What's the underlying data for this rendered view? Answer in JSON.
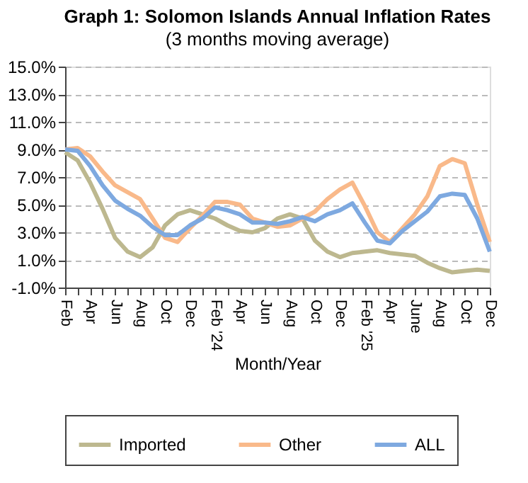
{
  "chart_data": {
    "type": "line",
    "title": "Graph 1:  Solomon Islands Annual Inflation Rates",
    "subtitle": "(3 months moving average)",
    "xlabel": "Month/Year",
    "categories": [
      "Feb",
      null,
      "Apr",
      null,
      "Jun",
      null,
      "Aug",
      null,
      "Oct",
      null,
      "Dec",
      null,
      "Feb '24",
      null,
      "Apr",
      null,
      "Jun",
      null,
      "Aug",
      null,
      "Oct",
      null,
      "Dec",
      null,
      "Feb '25",
      null,
      "Apr",
      null,
      "June",
      null,
      "Aug",
      null,
      "Oct",
      null,
      "Dec"
    ],
    "series": [
      {
        "name": "Imported",
        "color": "#bdb88f",
        "values": [
          8.8,
          8.2,
          6.6,
          4.7,
          2.6,
          1.6,
          1.2,
          1.9,
          3.5,
          4.3,
          4.6,
          4.3,
          4.0,
          3.5,
          3.1,
          3.0,
          3.3,
          4.0,
          4.3,
          4.0,
          2.4,
          1.6,
          1.2,
          1.5,
          1.6,
          1.7,
          1.5,
          1.4,
          1.3,
          0.8,
          0.4,
          0.1,
          0.2,
          0.3,
          0.2
        ]
      },
      {
        "name": "Other",
        "color": "#f9b98a",
        "values": [
          9.0,
          9.1,
          8.5,
          7.4,
          6.4,
          5.9,
          5.4,
          4.0,
          2.6,
          2.3,
          3.3,
          4.2,
          5.2,
          5.2,
          5.0,
          4.0,
          3.7,
          3.4,
          3.5,
          4.0,
          4.5,
          5.4,
          6.1,
          6.6,
          4.9,
          3.0,
          2.3,
          3.3,
          4.3,
          5.6,
          7.8,
          8.3,
          8.0,
          5.0,
          2.3
        ]
      },
      {
        "name": "ALL",
        "color": "#7ea9e0",
        "values": [
          9.0,
          8.9,
          7.8,
          6.4,
          5.3,
          4.7,
          4.2,
          3.4,
          2.8,
          2.8,
          3.5,
          4.0,
          4.8,
          4.6,
          4.3,
          3.7,
          3.7,
          3.6,
          3.8,
          4.1,
          3.8,
          4.3,
          4.6,
          5.1,
          3.7,
          2.4,
          2.2,
          3.1,
          3.8,
          4.5,
          5.6,
          5.8,
          5.7,
          4.0,
          1.6
        ]
      }
    ],
    "ylim": [
      -1,
      15
    ],
    "yticks": [
      {
        "value": -1,
        "label": "-1.0%"
      },
      {
        "value": 1,
        "label": "1.0%"
      },
      {
        "value": 3,
        "label": "3.0%"
      },
      {
        "value": 5,
        "label": "5.0%"
      },
      {
        "value": 7,
        "label": "7.0%"
      },
      {
        "value": 9,
        "label": "9.0%"
      },
      {
        "value": 11,
        "label": "11.0%"
      },
      {
        "value": 13,
        "label": "13.0%"
      },
      {
        "value": 15,
        "label": "15.0%"
      }
    ],
    "grid": "y",
    "legend": "bottom",
    "marker": "none",
    "line_style": "solid"
  }
}
